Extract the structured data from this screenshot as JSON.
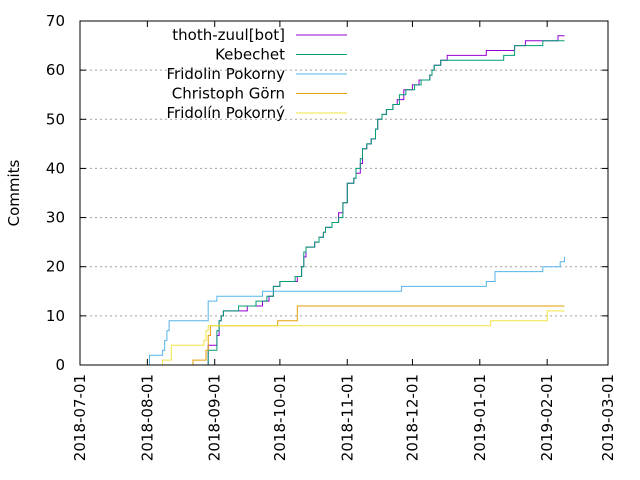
{
  "chart_data": {
    "type": "line",
    "title": "",
    "xlabel": "",
    "ylabel": "Commits",
    "ylim": [
      0,
      70
    ],
    "yticks": [
      0,
      10,
      20,
      30,
      40,
      50,
      60,
      70
    ],
    "xlim": [
      "2018-07-01",
      "2019-03-01"
    ],
    "xticks": [
      "2018-07-01",
      "2018-08-01",
      "2018-09-01",
      "2018-10-01",
      "2018-11-01",
      "2018-12-01",
      "2019-01-01",
      "2019-02-01",
      "2019-03-01"
    ],
    "grid": "horizontal dotted at y ticks",
    "legend": "top-left, inside plot",
    "step": true,
    "series": [
      {
        "name": "thoth-zuul[bot]",
        "color": "#9400d3",
        "points": [
          [
            "2018-08-28",
            0
          ],
          [
            "2018-08-29",
            4
          ],
          [
            "2018-09-02",
            6
          ],
          [
            "2018-09-03",
            9
          ],
          [
            "2018-09-04",
            10
          ],
          [
            "2018-09-05",
            11
          ],
          [
            "2018-09-15",
            11
          ],
          [
            "2018-09-16",
            12
          ],
          [
            "2018-09-23",
            13
          ],
          [
            "2018-09-26",
            14
          ],
          [
            "2018-09-28",
            16
          ],
          [
            "2018-10-01",
            17
          ],
          [
            "2018-10-09",
            18
          ],
          [
            "2018-10-11",
            20
          ],
          [
            "2018-10-12",
            22
          ],
          [
            "2018-10-13",
            24
          ],
          [
            "2018-10-17",
            25
          ],
          [
            "2018-10-19",
            26
          ],
          [
            "2018-10-21",
            27
          ],
          [
            "2018-10-22",
            28
          ],
          [
            "2018-10-25",
            29
          ],
          [
            "2018-10-28",
            31
          ],
          [
            "2018-10-30",
            33
          ],
          [
            "2018-11-01",
            37
          ],
          [
            "2018-11-04",
            38
          ],
          [
            "2018-11-05",
            39
          ],
          [
            "2018-11-07",
            41
          ],
          [
            "2018-11-08",
            44
          ],
          [
            "2018-11-10",
            45
          ],
          [
            "2018-11-12",
            46
          ],
          [
            "2018-11-14",
            48
          ],
          [
            "2018-11-15",
            50
          ],
          [
            "2018-11-17",
            51
          ],
          [
            "2018-11-19",
            52
          ],
          [
            "2018-11-22",
            53
          ],
          [
            "2018-11-24",
            54
          ],
          [
            "2018-11-27",
            56
          ],
          [
            "2018-12-01",
            57
          ],
          [
            "2018-12-04",
            58
          ],
          [
            "2018-12-09",
            59
          ],
          [
            "2018-12-10",
            60
          ],
          [
            "2018-12-11",
            61
          ],
          [
            "2018-12-14",
            62
          ],
          [
            "2018-12-17",
            63
          ],
          [
            "2019-01-04",
            64
          ],
          [
            "2019-01-17",
            65
          ],
          [
            "2019-01-22",
            66
          ],
          [
            "2019-02-06",
            67
          ],
          [
            "2019-02-09",
            67
          ]
        ]
      },
      {
        "name": "Kebechet",
        "color": "#009e73",
        "points": [
          [
            "2018-08-28",
            0
          ],
          [
            "2018-08-29",
            3
          ],
          [
            "2018-09-02",
            7
          ],
          [
            "2018-09-03",
            9
          ],
          [
            "2018-09-04",
            10
          ],
          [
            "2018-09-05",
            11
          ],
          [
            "2018-09-12",
            12
          ],
          [
            "2018-09-20",
            13
          ],
          [
            "2018-09-25",
            14
          ],
          [
            "2018-09-28",
            16
          ],
          [
            "2018-10-01",
            17
          ],
          [
            "2018-10-08",
            18
          ],
          [
            "2018-10-11",
            20
          ],
          [
            "2018-10-12",
            23
          ],
          [
            "2018-10-13",
            24
          ],
          [
            "2018-10-17",
            25
          ],
          [
            "2018-10-19",
            26
          ],
          [
            "2018-10-21",
            27
          ],
          [
            "2018-10-22",
            28
          ],
          [
            "2018-10-25",
            29
          ],
          [
            "2018-10-28",
            30
          ],
          [
            "2018-10-30",
            33
          ],
          [
            "2018-11-01",
            37
          ],
          [
            "2018-11-04",
            38
          ],
          [
            "2018-11-05",
            40
          ],
          [
            "2018-11-07",
            42
          ],
          [
            "2018-11-08",
            44
          ],
          [
            "2018-11-10",
            45
          ],
          [
            "2018-11-12",
            46
          ],
          [
            "2018-11-14",
            48
          ],
          [
            "2018-11-15",
            50
          ],
          [
            "2018-11-17",
            51
          ],
          [
            "2018-11-19",
            52
          ],
          [
            "2018-11-22",
            53
          ],
          [
            "2018-11-25",
            55
          ],
          [
            "2018-11-28",
            56
          ],
          [
            "2018-12-02",
            57
          ],
          [
            "2018-12-05",
            58
          ],
          [
            "2018-12-09",
            59
          ],
          [
            "2018-12-10",
            60
          ],
          [
            "2018-12-11",
            61
          ],
          [
            "2018-12-14",
            62
          ],
          [
            "2019-01-05",
            62
          ],
          [
            "2019-01-12",
            63
          ],
          [
            "2019-01-17",
            65
          ],
          [
            "2019-01-30",
            66
          ],
          [
            "2019-02-09",
            66
          ]
        ]
      },
      {
        "name": "Fridolin Pokorny",
        "color": "#56b4e9",
        "points": [
          [
            "2018-08-01",
            0
          ],
          [
            "2018-08-02",
            2
          ],
          [
            "2018-08-08",
            3
          ],
          [
            "2018-08-09",
            5
          ],
          [
            "2018-08-10",
            7
          ],
          [
            "2018-08-11",
            9
          ],
          [
            "2018-08-29",
            13
          ],
          [
            "2018-09-02",
            14
          ],
          [
            "2018-09-20",
            14
          ],
          [
            "2018-09-23",
            15
          ],
          [
            "2018-11-25",
            15
          ],
          [
            "2018-11-26",
            16
          ],
          [
            "2018-12-31",
            16
          ],
          [
            "2019-01-04",
            17
          ],
          [
            "2019-01-08",
            19
          ],
          [
            "2019-01-25",
            19
          ],
          [
            "2019-01-30",
            20
          ],
          [
            "2019-02-07",
            21
          ],
          [
            "2019-02-09",
            22
          ]
        ]
      },
      {
        "name": "Christoph Görn",
        "color": "#e69f00",
        "points": [
          [
            "2018-08-06",
            0
          ],
          [
            "2018-08-15",
            0
          ],
          [
            "2018-08-22",
            1
          ],
          [
            "2018-08-28",
            3
          ],
          [
            "2018-08-29",
            6
          ],
          [
            "2018-08-30",
            8
          ],
          [
            "2018-09-27",
            8
          ],
          [
            "2018-09-30",
            9
          ],
          [
            "2018-10-08",
            9
          ],
          [
            "2018-10-09",
            12
          ],
          [
            "2019-02-09",
            12
          ]
        ]
      },
      {
        "name": "Fridolín Pokorný",
        "color": "#f0e442",
        "points": [
          [
            "2018-08-06",
            0
          ],
          [
            "2018-08-08",
            1
          ],
          [
            "2018-08-12",
            4
          ],
          [
            "2018-08-26",
            4
          ],
          [
            "2018-08-27",
            5
          ],
          [
            "2018-08-28",
            7
          ],
          [
            "2018-08-29",
            8
          ],
          [
            "2019-01-05",
            8
          ],
          [
            "2019-01-06",
            9
          ],
          [
            "2019-01-31",
            9
          ],
          [
            "2019-02-01",
            11
          ],
          [
            "2019-02-09",
            11
          ]
        ]
      }
    ]
  }
}
